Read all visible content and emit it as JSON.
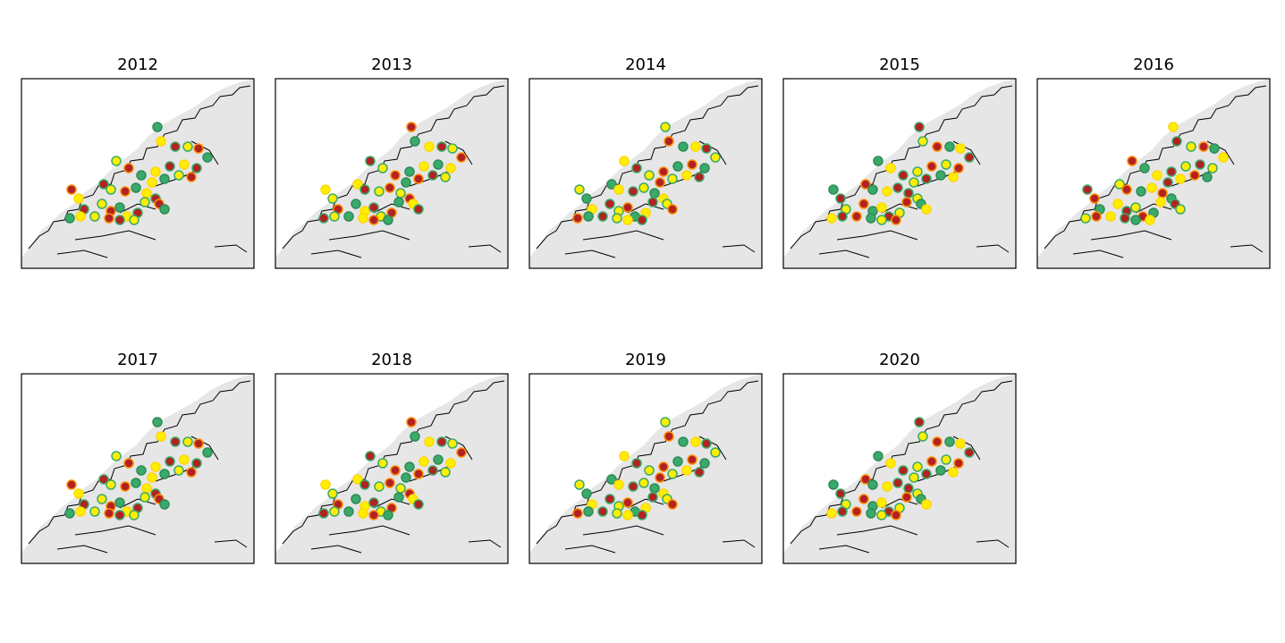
{
  "panels": [
    {
      "title": "2012"
    },
    {
      "title": "2013"
    },
    {
      "title": "2014"
    },
    {
      "title": "2015"
    },
    {
      "title": "2016"
    },
    {
      "title": "2017"
    },
    {
      "title": "2018"
    },
    {
      "title": "2019"
    },
    {
      "title": "2020"
    }
  ]
}
